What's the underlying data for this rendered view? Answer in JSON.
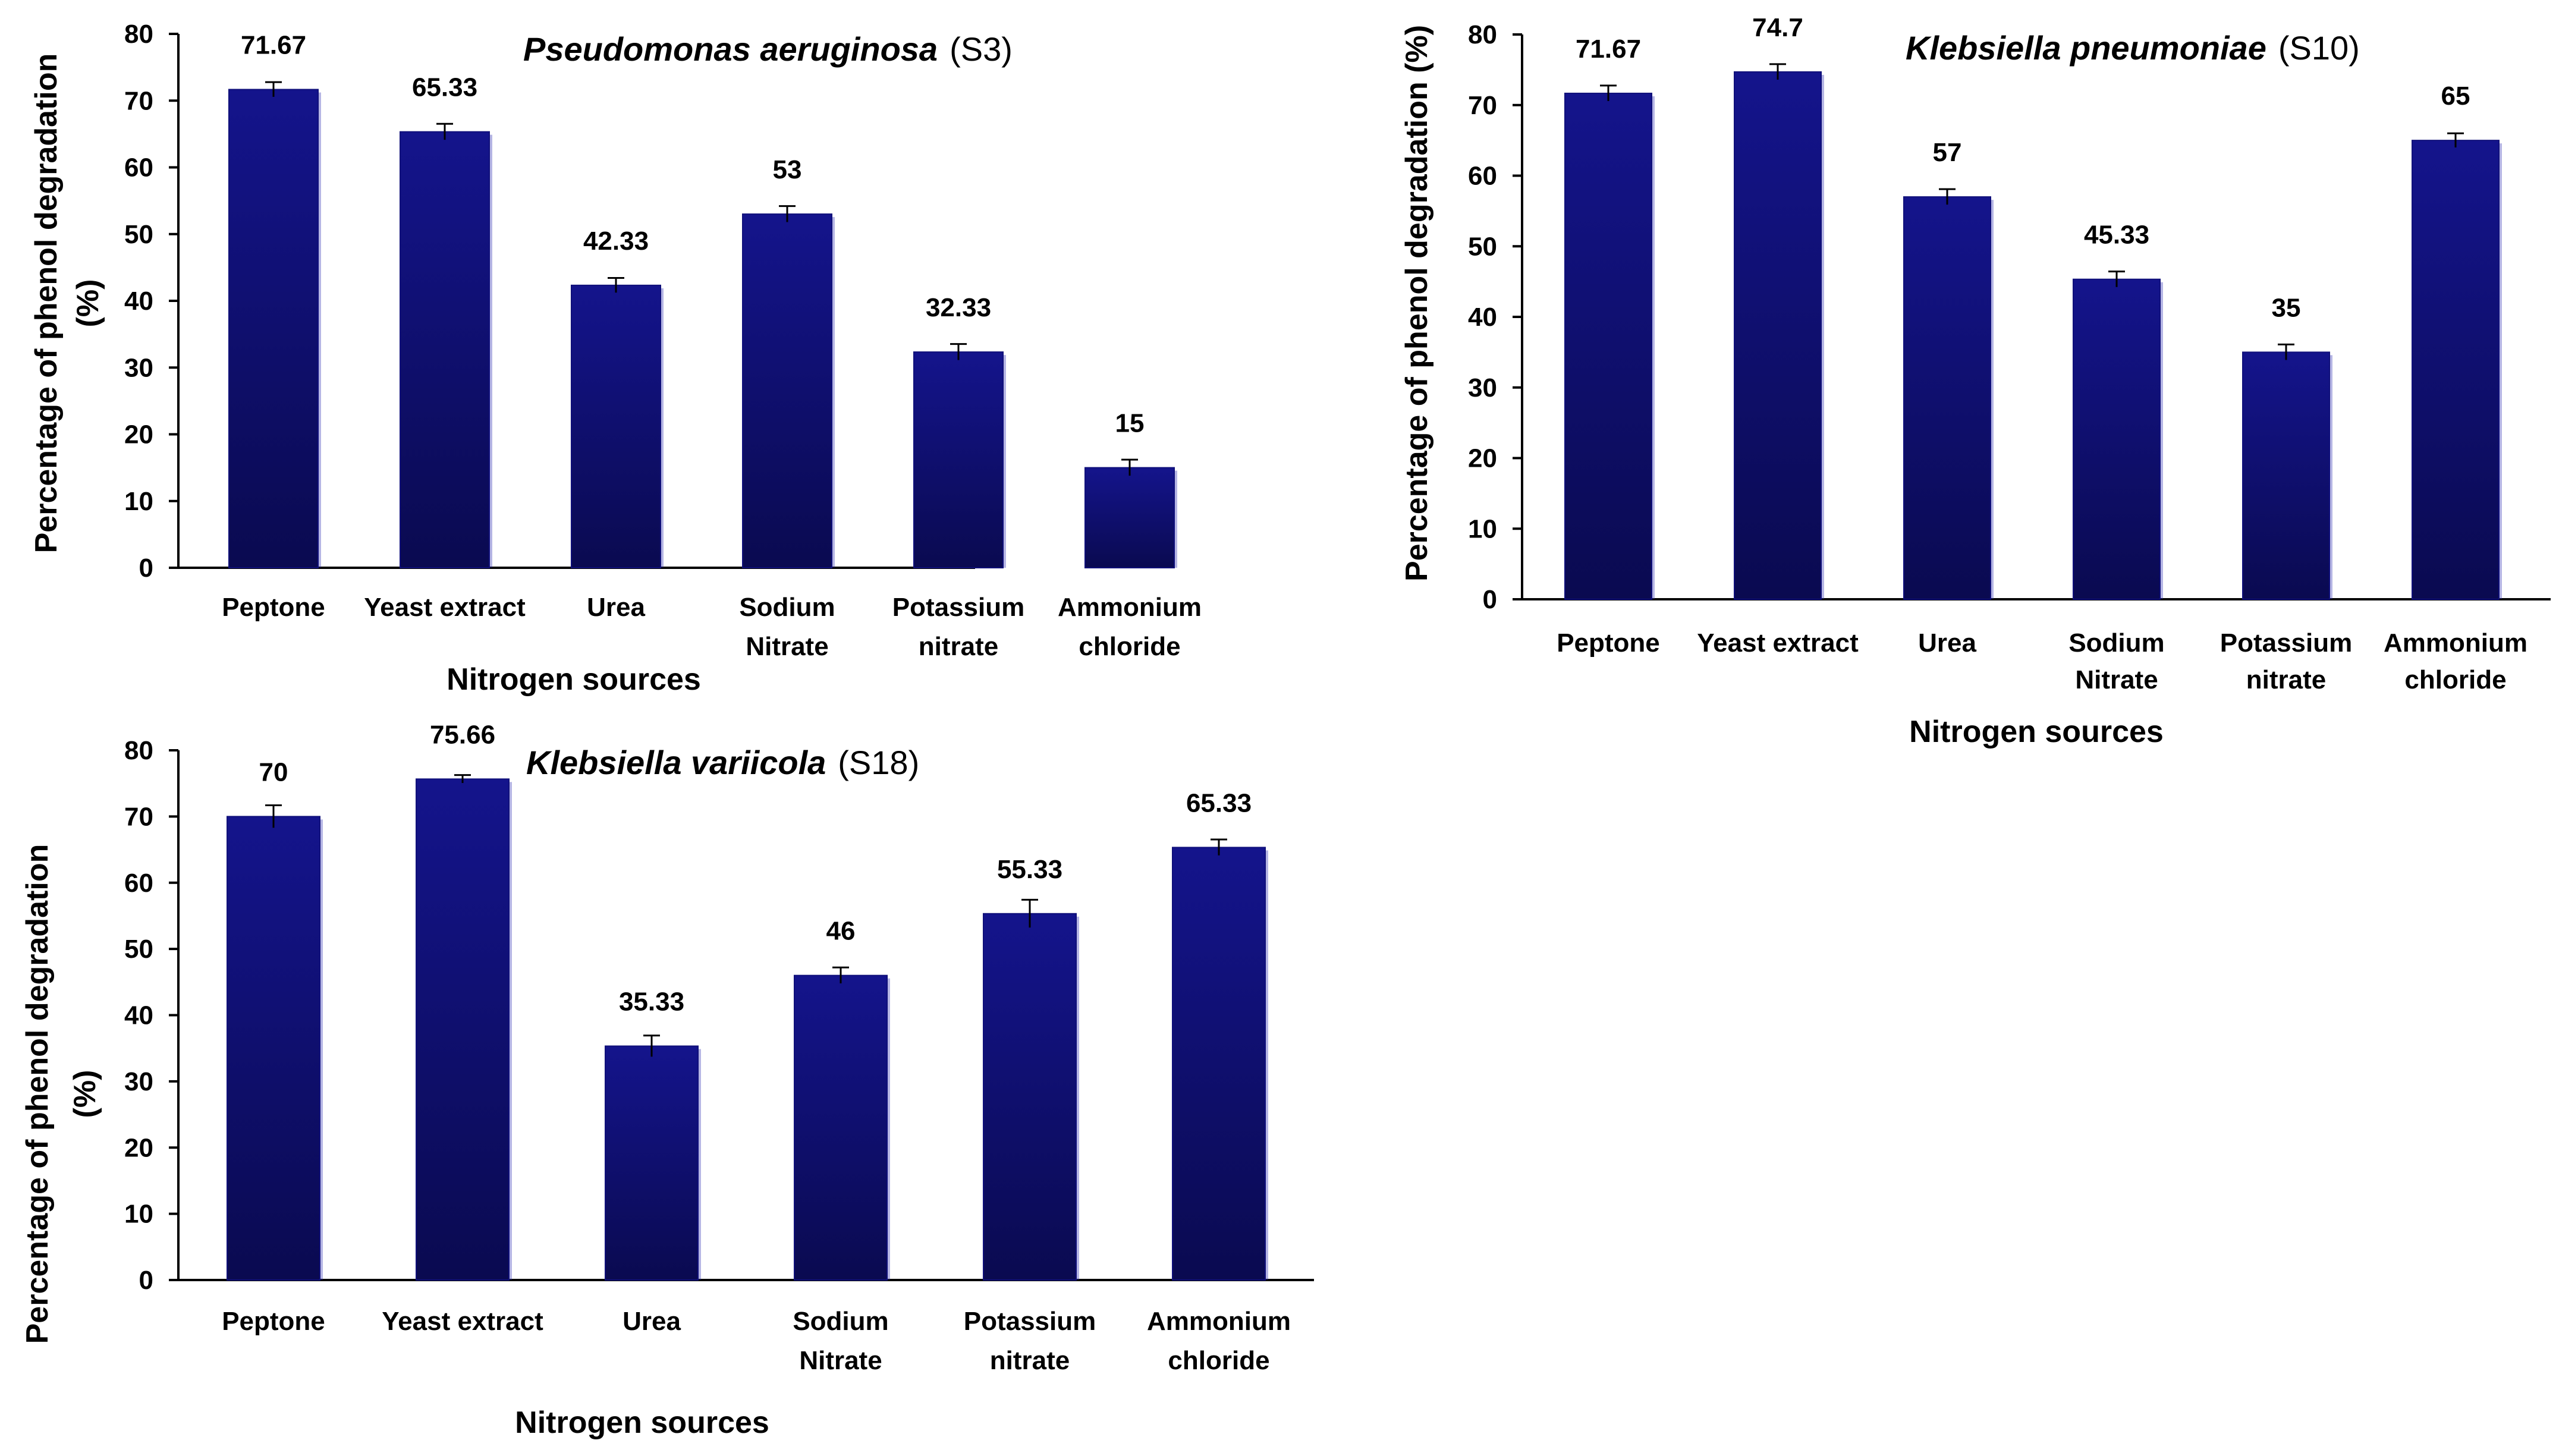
{
  "chart_data": [
    {
      "type": "bar",
      "title": {
        "organism": "Pseudomonas aeruginosa",
        "strain": "(S3)"
      },
      "categories": [
        [
          "Peptone"
        ],
        [
          "Yeast extract"
        ],
        [
          "Urea"
        ],
        [
          "Sodium",
          "Nitrate"
        ],
        [
          "Potassium",
          "nitrate"
        ],
        [
          "Ammonium",
          "chloride"
        ]
      ],
      "values": [
        71.67,
        65.33,
        42.33,
        53,
        32.33,
        15
      ],
      "value_labels": [
        "71.67",
        "65.33",
        "42.33",
        "53",
        "32.33",
        "15"
      ],
      "errors": [
        1.1,
        1.2,
        1.1,
        1.2,
        1.2,
        1.2
      ],
      "ylim": [
        0,
        80
      ],
      "yticks": [
        "0",
        "10",
        "20",
        "30",
        "40",
        "50",
        "60",
        "70",
        "80"
      ],
      "xlabel": "Nitrogen sources",
      "ylabel": [
        "Percentage of phenol degradation",
        "(%)"
      ],
      "bar_color": "#10107a",
      "bar_shadow": "#2a2ab2"
    },
    {
      "type": "bar",
      "title": {
        "organism": "Klebsiella pneumoniae",
        "strain": "(S10)"
      },
      "categories": [
        [
          "Peptone"
        ],
        [
          "Yeast extract"
        ],
        [
          "Urea"
        ],
        [
          "Sodium",
          "Nitrate"
        ],
        [
          "Potassium",
          "nitrate"
        ],
        [
          "Ammonium",
          "chloride"
        ]
      ],
      "values": [
        71.67,
        74.7,
        57,
        45.33,
        35,
        65
      ],
      "value_labels": [
        "71.67",
        "74.7",
        "57",
        "45.33",
        "35",
        "65"
      ],
      "errors": [
        1.1,
        1.1,
        1.1,
        1.1,
        1.1,
        1.0
      ],
      "ylim": [
        0,
        80
      ],
      "yticks": [
        "0",
        "10",
        "20",
        "30",
        "40",
        "50",
        "60",
        "70",
        "80"
      ],
      "xlabel": "Nitrogen sources",
      "ylabel": [
        "Percentage of phenol degradation (%)"
      ],
      "bar_color": "#10107a",
      "bar_shadow": "#2a2ab2"
    },
    {
      "type": "bar",
      "title": {
        "organism": "Klebsiella variicola",
        "strain": "(S18)"
      },
      "categories": [
        [
          "Peptone"
        ],
        [
          "Yeast extract"
        ],
        [
          "Urea"
        ],
        [
          "Sodium",
          "Nitrate"
        ],
        [
          "Potassium",
          "nitrate"
        ],
        [
          "Ammonium",
          "chloride"
        ]
      ],
      "values": [
        70,
        75.66,
        35.33,
        46,
        55.33,
        65.33
      ],
      "value_labels": [
        "70",
        "75.66",
        "35.33",
        "46",
        "55.33",
        "65.33"
      ],
      "errors": [
        1.7,
        0.6,
        1.6,
        1.2,
        2.1,
        1.2
      ],
      "ylim": [
        0,
        80
      ],
      "yticks": [
        "0",
        "10",
        "20",
        "30",
        "40",
        "50",
        "60",
        "70",
        "80"
      ],
      "xlabel": "Nitrogen sources",
      "ylabel": [
        "Percentage of phenol degradation",
        "(%)"
      ],
      "bar_color": "#10107a",
      "bar_shadow": "#2a2ab2"
    }
  ]
}
